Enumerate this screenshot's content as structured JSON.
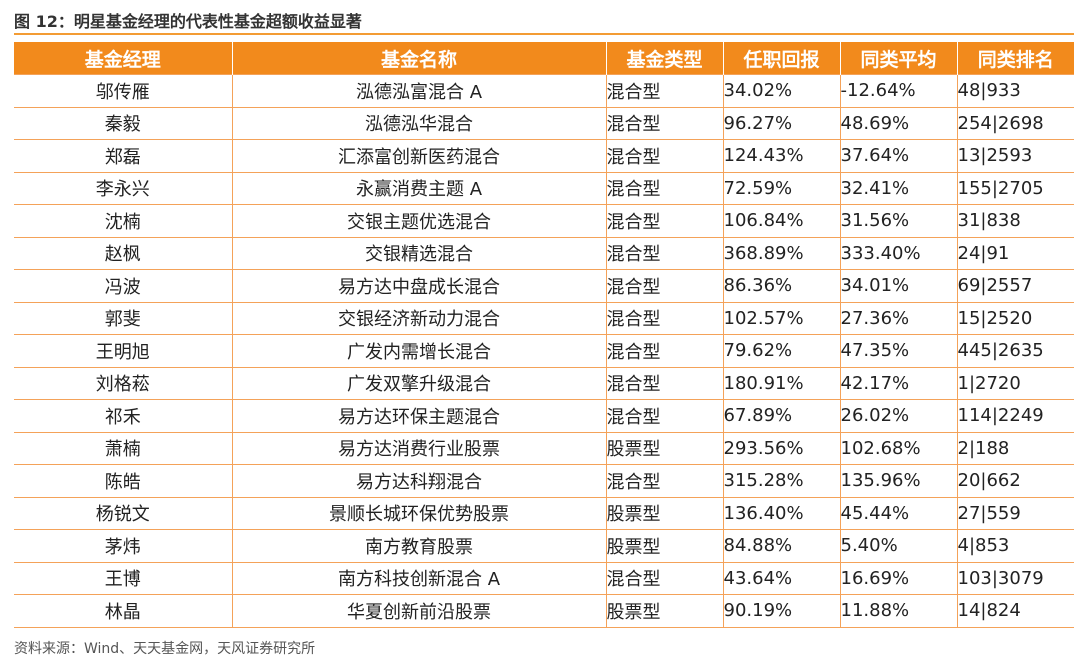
{
  "figure": {
    "title": "图 12：明星基金经理的代表性基金超额收益显著",
    "source": "资料来源：Wind、天天基金网，天风证券研究所"
  },
  "table": {
    "headers": [
      "基金经理",
      "基金名称",
      "基金类型",
      "任职回报",
      "同类平均",
      "同类排名"
    ],
    "rows": [
      [
        "邬传雁",
        "泓德泓富混合 A",
        "混合型",
        "34.02%",
        "-12.64%",
        "48|933"
      ],
      [
        "秦毅",
        "泓德泓华混合",
        "混合型",
        "96.27%",
        "48.69%",
        "254|2698"
      ],
      [
        "郑磊",
        "汇添富创新医药混合",
        "混合型",
        "124.43%",
        "37.64%",
        "13|2593"
      ],
      [
        "李永兴",
        "永赢消费主题 A",
        "混合型",
        "72.59%",
        "32.41%",
        "155|2705"
      ],
      [
        "沈楠",
        "交银主题优选混合",
        "混合型",
        "106.84%",
        "31.56%",
        "31|838"
      ],
      [
        "赵枫",
        "交银精选混合",
        "混合型",
        "368.89%",
        "333.40%",
        "24|91"
      ],
      [
        "冯波",
        "易方达中盘成长混合",
        "混合型",
        "86.36%",
        "34.01%",
        "69|2557"
      ],
      [
        "郭斐",
        "交银经济新动力混合",
        "混合型",
        "102.57%",
        "27.36%",
        "15|2520"
      ],
      [
        "王明旭",
        "广发内需增长混合",
        "混合型",
        "79.62%",
        "47.35%",
        "445|2635"
      ],
      [
        "刘格菘",
        "广发双擎升级混合",
        "混合型",
        "180.91%",
        "42.17%",
        "1|2720"
      ],
      [
        "祁禾",
        "易方达环保主题混合",
        "混合型",
        "67.89%",
        "26.02%",
        "114|2249"
      ],
      [
        "萧楠",
        "易方达消费行业股票",
        "股票型",
        "293.56%",
        "102.68%",
        "2|188"
      ],
      [
        "陈皓",
        "易方达科翔混合",
        "混合型",
        "315.28%",
        "135.96%",
        "20|662"
      ],
      [
        "杨锐文",
        "景顺长城环保优势股票",
        "股票型",
        "136.40%",
        "45.44%",
        "27|559"
      ],
      [
        "茅炜",
        "南方教育股票",
        "股票型",
        "84.88%",
        "5.40%",
        "4|853"
      ],
      [
        "王博",
        "南方科技创新混合 A",
        "混合型",
        "43.64%",
        "16.69%",
        "103|3079"
      ],
      [
        "林晶",
        "华夏创新前沿股票",
        "股票型",
        "90.19%",
        "11.88%",
        "14|824"
      ]
    ]
  },
  "colors": {
    "header_fill": "#f28a1c",
    "grid_line": "#f4a259",
    "title_rule": "#f39c34"
  }
}
